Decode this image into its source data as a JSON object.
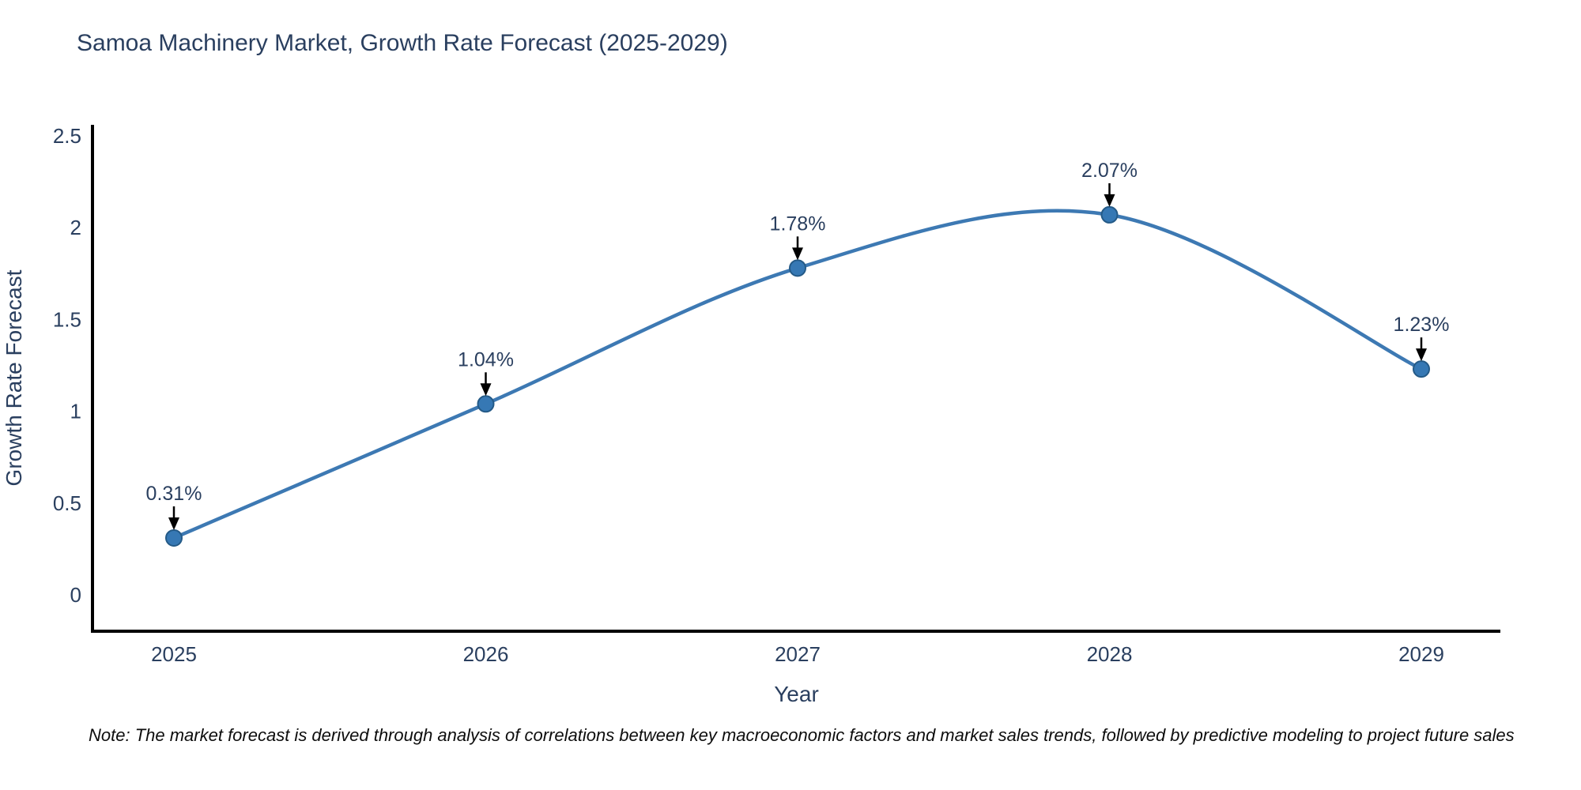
{
  "chart_data": {
    "type": "line",
    "title": "Samoa Machinery Market, Growth Rate Forecast (2025-2029)",
    "categories": [
      "2025",
      "2026",
      "2027",
      "2028",
      "2029"
    ],
    "values": [
      0.31,
      1.04,
      1.78,
      2.07,
      1.23
    ],
    "point_labels": [
      "0.31%",
      "1.04%",
      "1.78%",
      "2.07%",
      "1.23%"
    ],
    "xlabel": "Year",
    "ylabel": "Growth Rate Forecast",
    "ylim": [
      0,
      2.5
    ],
    "y_ticks": [
      "0",
      "0.5",
      "1",
      "1.5",
      "2",
      "2.5"
    ],
    "grid": false,
    "legend": "none",
    "line_shape": "spline",
    "line_color": "#3d79b3",
    "marker_color": "#3678b4",
    "marker_edge_color": "#245a87",
    "axis_color": "#000000",
    "text_color": "#2a3f5f",
    "annotation_text_color": "#2a3f5f",
    "annotation_arrow_color": "#000000",
    "background_color": "#ffffff"
  },
  "note": "Note: The market forecast is derived through analysis of correlations between key macroeconomic factors and market sales trends, followed by predictive modeling to project future sales"
}
